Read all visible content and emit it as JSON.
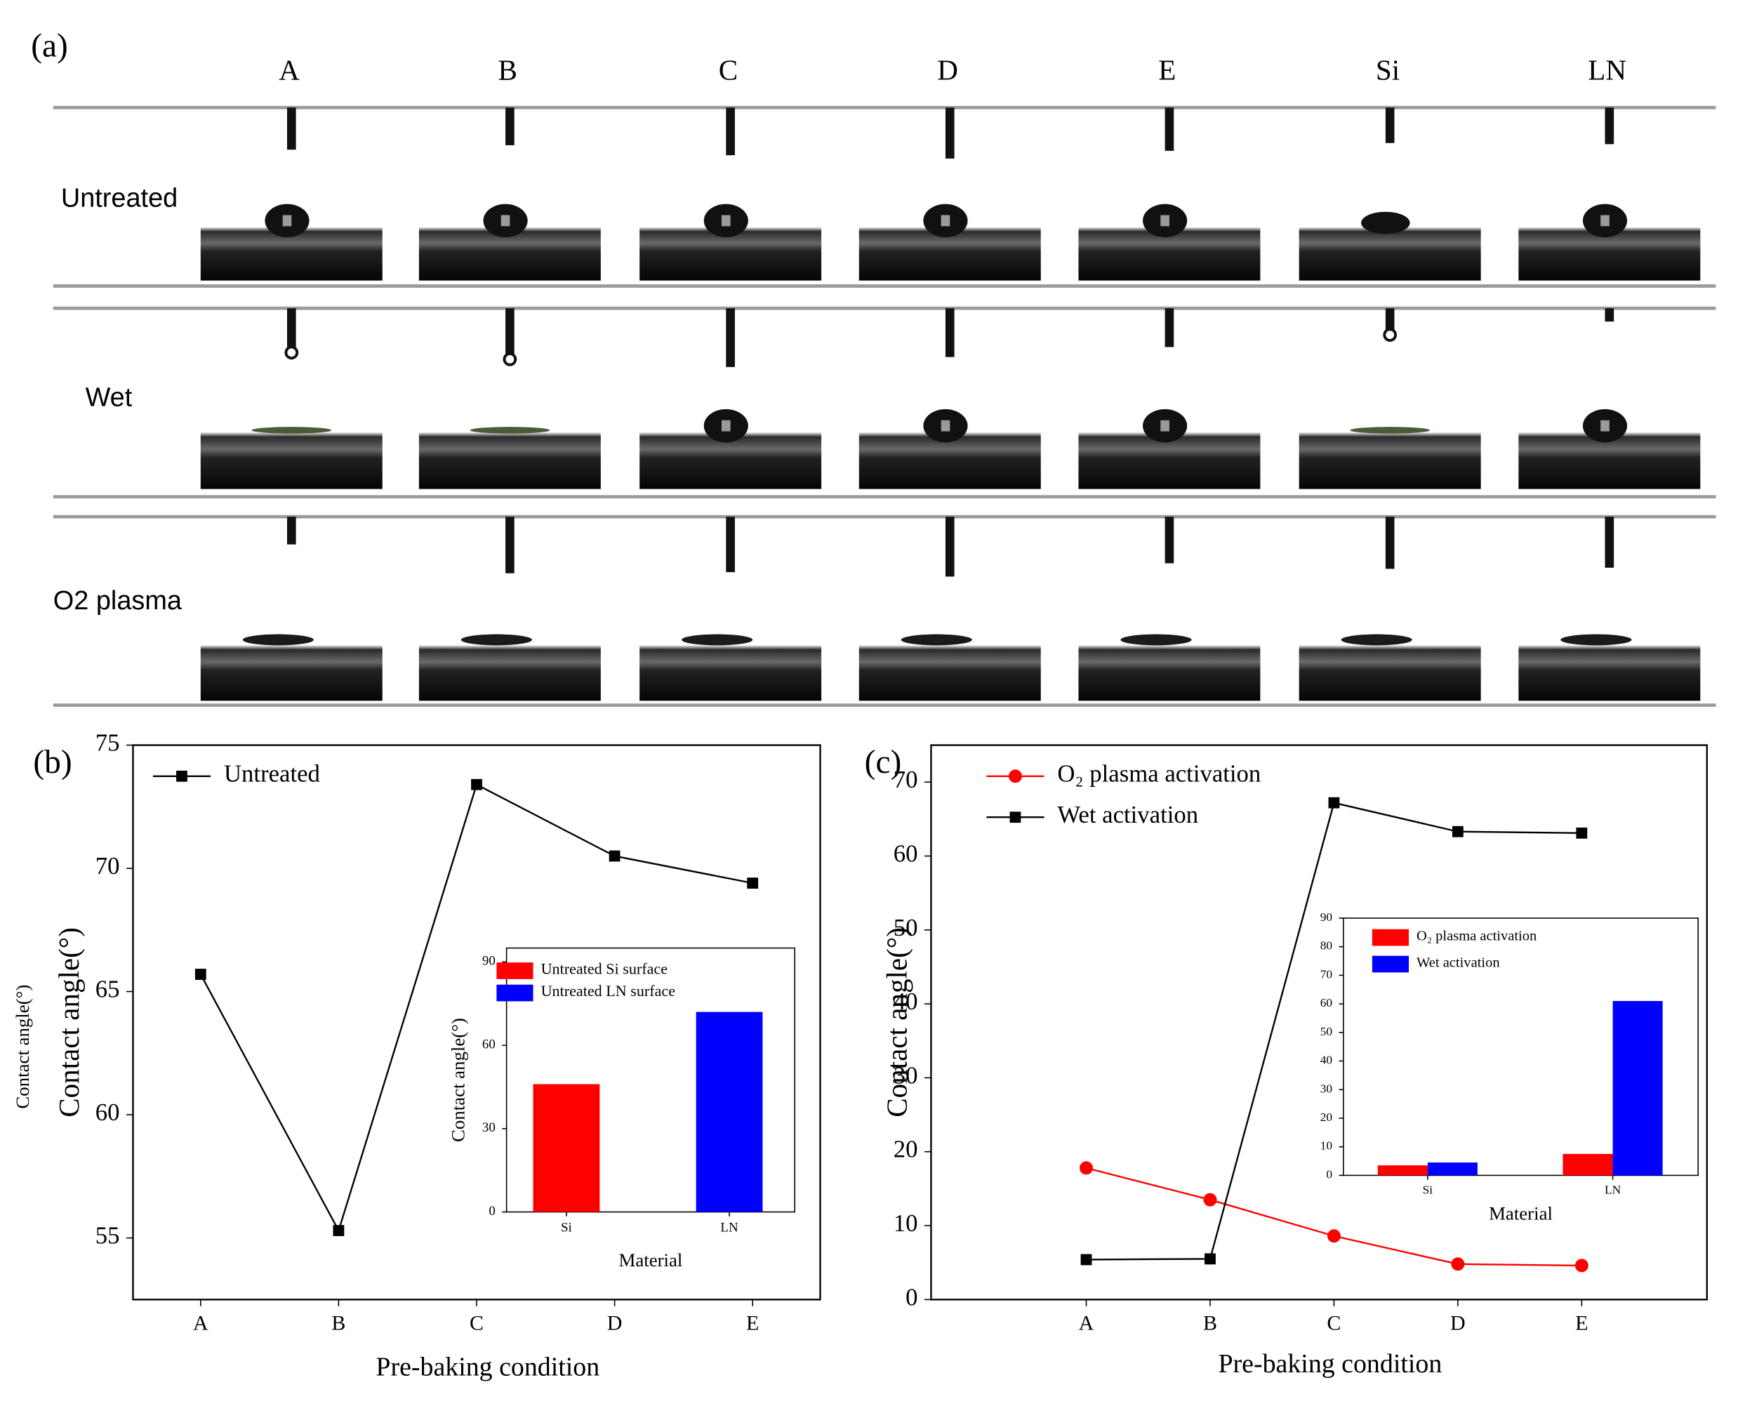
{
  "panel_a": {
    "label": "(a)",
    "columns": [
      "A",
      "B",
      "C",
      "D",
      "E",
      "Si",
      "LN"
    ],
    "rows": [
      "Untreated",
      "Wet",
      "O2 plasma"
    ]
  },
  "chart_data": [
    {
      "type": "line",
      "label": "(b)",
      "y_label": "Contact angle(°)",
      "x_label": "Pre-baking condition",
      "categories": [
        "A",
        "B",
        "C",
        "D",
        "E"
      ],
      "series": [
        {
          "name": "Untreated",
          "color": "#000000",
          "marker": "square",
          "values": [
            65.7,
            55.3,
            73.4,
            70.5,
            69.4
          ]
        }
      ],
      "ylim": [
        52.5,
        75
      ],
      "yticks": [
        55,
        60,
        65,
        70,
        75
      ],
      "legend": "upper left"
    },
    {
      "type": "bar",
      "y_label": "Contact angle(°)",
      "x_label": "Material",
      "categories": [
        "Si",
        "LN"
      ],
      "series": [
        {
          "name": "Untreated Si surface",
          "color": "#ff0000",
          "values": [
            46,
            null
          ]
        },
        {
          "name": "Untreated LN surface",
          "color": "#0000ff",
          "values": [
            null,
            72
          ]
        }
      ],
      "ylim": [
        0,
        95
      ],
      "yticks": [
        0,
        30,
        60,
        90
      ],
      "legend": "upper left"
    },
    {
      "type": "line",
      "label": "(c)",
      "y_label": "Contact angle(°)",
      "x_label": "Pre-baking condition",
      "categories": [
        "A",
        "B",
        "C",
        "D",
        "E"
      ],
      "series": [
        {
          "name": "O₂ plasma activation",
          "color": "#ff0000",
          "marker": "circle",
          "values": [
            17.8,
            13.5,
            8.6,
            4.8,
            4.6
          ]
        },
        {
          "name": "Wet activation",
          "color": "#000000",
          "marker": "square",
          "values": [
            5.4,
            5.5,
            67.2,
            63.3,
            63.1
          ]
        }
      ],
      "ylim": [
        0,
        75
      ],
      "yticks": [
        0,
        10,
        20,
        30,
        40,
        50,
        60,
        70
      ],
      "legend": "upper left"
    },
    {
      "type": "bar",
      "y_label": "Contact angle(°)",
      "x_label": "Material",
      "categories": [
        "Si",
        "LN"
      ],
      "series": [
        {
          "name": "O₂ plasma activation",
          "color": "#ff0000",
          "values": [
            3.5,
            7.5
          ]
        },
        {
          "name": "Wet activation",
          "color": "#0000ff",
          "values": [
            4.5,
            61
          ]
        }
      ],
      "ylim": [
        0,
        90
      ],
      "yticks": [
        0,
        10,
        20,
        30,
        40,
        50,
        60,
        70,
        80,
        90
      ],
      "legend": "upper left"
    }
  ]
}
